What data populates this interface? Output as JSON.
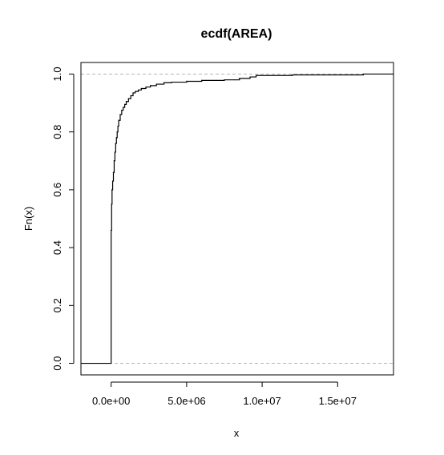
{
  "chart_data": {
    "type": "line",
    "step": true,
    "title": "ecdf(AREA)",
    "xlabel": "x",
    "ylabel": "Fn(x)",
    "xlim": [
      -2000000,
      18700000
    ],
    "ylim": [
      -0.04,
      1.04
    ],
    "x_ticks": [
      0,
      5000000,
      10000000,
      15000000
    ],
    "x_tick_labels": [
      "0.0e+00",
      "5.0e+06",
      "1.0e+07",
      "1.5e+07"
    ],
    "y_ticks": [
      0.0,
      0.2,
      0.4,
      0.6,
      0.8,
      1.0
    ],
    "y_tick_labels": [
      "0.0",
      "0.2",
      "0.4",
      "0.6",
      "0.8",
      "1.0"
    ],
    "reference_lines": [
      0,
      1
    ],
    "grid": false,
    "series": [
      {
        "x": [
          0,
          30000,
          60000,
          100000,
          150000,
          200000,
          250000,
          300000,
          350000,
          400000,
          450000,
          500000,
          600000,
          700000,
          800000,
          900000,
          1000000,
          1150000,
          1300000,
          1450000,
          1600000,
          1800000,
          2000000,
          2300000,
          2600000,
          3000000,
          3500000,
          4000000,
          5000000,
          6000000,
          7500000,
          8500000,
          9200000,
          9600000,
          12000000,
          16700000
        ],
        "y": [
          0.46,
          0.55,
          0.6,
          0.63,
          0.66,
          0.7,
          0.73,
          0.76,
          0.78,
          0.8,
          0.82,
          0.84,
          0.86,
          0.875,
          0.885,
          0.895,
          0.905,
          0.915,
          0.925,
          0.935,
          0.94,
          0.945,
          0.95,
          0.955,
          0.96,
          0.965,
          0.97,
          0.972,
          0.975,
          0.978,
          0.98,
          0.985,
          0.99,
          0.995,
          0.997,
          1.0
        ]
      }
    ]
  }
}
